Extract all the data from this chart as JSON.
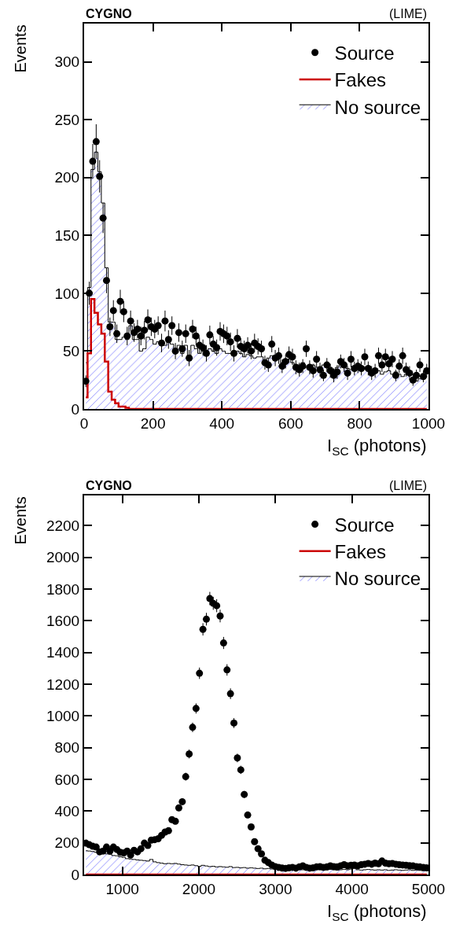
{
  "chart_data": [
    {
      "type": "step",
      "xlabel": "I$_{SC}$ (photons)",
      "ylabel": "Events",
      "annotations": [
        "CYGNO",
        "(LIME)"
      ],
      "xlim": [
        0,
        1000
      ],
      "ylim": [
        0,
        333
      ],
      "xticks": [
        0,
        200,
        400,
        600,
        800,
        1000
      ],
      "yticks": [
        0,
        50,
        100,
        150,
        200,
        250,
        300
      ],
      "legend": "top right",
      "x": [
        5,
        15,
        25,
        35,
        45,
        55,
        65,
        75,
        85,
        95,
        105,
        115,
        125,
        135,
        145,
        155,
        165,
        175,
        185,
        195,
        205,
        215,
        225,
        235,
        245,
        255,
        265,
        275,
        285,
        295,
        305,
        315,
        325,
        335,
        345,
        355,
        365,
        375,
        385,
        395,
        405,
        415,
        425,
        435,
        445,
        455,
        465,
        475,
        485,
        495,
        505,
        515,
        525,
        535,
        545,
        555,
        565,
        575,
        585,
        595,
        605,
        615,
        625,
        635,
        645,
        655,
        665,
        675,
        685,
        695,
        705,
        715,
        725,
        735,
        745,
        755,
        765,
        775,
        785,
        795,
        805,
        815,
        825,
        835,
        845,
        855,
        865,
        875,
        885,
        895,
        905,
        915,
        925,
        935,
        945,
        955,
        965,
        975,
        985,
        995
      ],
      "series": [
        {
          "name": "Source",
          "type": "scatter",
          "marker": "circle",
          "color": "#000000",
          "values": [
            24,
            100,
            214,
            231,
            201,
            165,
            111,
            71,
            85,
            65,
            93,
            84,
            63,
            76,
            66,
            69,
            63,
            68,
            77,
            71,
            69,
            72,
            57,
            76,
            60,
            72,
            50,
            66,
            52,
            65,
            44,
            69,
            63,
            55,
            53,
            48,
            64,
            56,
            53,
            67,
            65,
            63,
            58,
            48,
            61,
            54,
            52,
            55,
            50,
            57,
            54,
            52,
            40,
            38,
            56,
            44,
            46,
            37,
            41,
            47,
            45,
            36,
            34,
            37,
            52,
            36,
            33,
            43,
            34,
            29,
            38,
            33,
            29,
            32,
            41,
            38,
            31,
            43,
            35,
            37,
            35,
            45,
            35,
            31,
            33,
            46,
            38,
            45,
            39,
            43,
            29,
            37,
            46,
            34,
            31,
            25,
            29,
            38,
            28,
            33
          ],
          "errors": [
            5,
            10,
            15,
            15,
            14,
            13,
            11,
            8,
            9,
            8,
            10,
            9,
            8,
            9,
            8,
            8,
            8,
            8,
            9,
            8,
            8,
            8,
            8,
            9,
            8,
            8,
            7,
            8,
            7,
            8,
            7,
            8,
            8,
            7,
            7,
            7,
            8,
            7,
            7,
            8,
            8,
            8,
            8,
            7,
            8,
            7,
            7,
            7,
            7,
            8,
            7,
            7,
            6,
            6,
            7,
            7,
            7,
            6,
            6,
            7,
            7,
            6,
            6,
            6,
            7,
            6,
            6,
            7,
            6,
            5,
            6,
            6,
            6,
            6,
            6,
            6,
            6,
            7,
            6,
            6,
            6,
            7,
            6,
            6,
            6,
            7,
            6,
            7,
            6,
            7,
            5,
            6,
            7,
            6,
            6,
            5,
            5,
            6,
            5,
            6
          ]
        },
        {
          "name": "Fakes",
          "color": "#cc0000",
          "values": [
            10,
            48,
            95,
            83,
            73,
            65,
            41,
            15,
            8,
            5,
            2,
            2,
            1,
            0,
            0,
            0,
            0,
            0,
            0,
            0,
            0,
            0,
            0,
            0,
            0,
            0,
            0,
            0,
            0,
            0,
            0,
            0,
            0,
            0,
            0,
            0,
            0,
            0,
            0,
            0,
            0,
            0,
            0,
            0,
            0,
            0,
            0,
            0,
            0,
            0,
            0,
            0,
            0,
            0,
            0,
            0,
            0,
            0,
            0,
            0,
            0,
            0,
            0,
            0,
            0,
            0,
            0,
            0,
            0,
            0,
            0,
            0,
            0,
            0,
            0,
            0,
            0,
            0,
            0,
            0,
            0,
            0,
            0,
            0,
            0,
            0,
            0,
            0,
            0,
            0,
            0,
            0,
            0,
            0,
            0,
            0,
            0,
            0,
            0,
            0
          ]
        },
        {
          "name": "No source",
          "type": "area",
          "color": "#0000ff",
          "values": [
            40,
            105,
            207,
            222,
            205,
            178,
            122,
            75,
            75,
            60,
            60,
            62,
            60,
            72,
            60,
            60,
            50,
            52,
            62,
            60,
            56,
            58,
            56,
            55,
            58,
            56,
            48,
            55,
            48,
            55,
            42,
            55,
            52,
            48,
            50,
            48,
            52,
            50,
            48,
            52,
            50,
            48,
            48,
            46,
            50,
            48,
            45,
            47,
            46,
            44,
            45,
            45,
            42,
            44,
            46,
            44,
            43,
            40,
            42,
            43,
            40,
            36,
            38,
            40,
            36,
            38,
            38,
            36,
            36,
            38,
            36,
            36,
            34,
            36,
            38,
            36,
            35,
            34,
            36,
            34,
            33,
            36,
            34,
            32,
            34,
            33,
            30,
            32,
            33,
            30,
            32,
            30,
            28,
            30,
            32,
            30,
            24,
            26,
            30,
            32
          ]
        }
      ]
    },
    {
      "type": "step",
      "xlabel": "I$_{SC}$ (photons)",
      "ylabel": "Events",
      "annotations": [
        "CYGNO",
        "(LIME)"
      ],
      "xlim": [
        500,
        5000
      ],
      "ylim": [
        0,
        2390
      ],
      "xticks": [
        1000,
        2000,
        3000,
        4000,
        5000
      ],
      "yticks": [
        0,
        200,
        400,
        600,
        800,
        1000,
        1200,
        1400,
        1600,
        1800,
        2000,
        2200
      ],
      "legend": "top right",
      "x": [
        522.5,
        567.5,
        612.5,
        657.5,
        702.5,
        747.5,
        792.5,
        837.5,
        882.5,
        927.5,
        972.5,
        1017.5,
        1062.5,
        1107.5,
        1152.5,
        1197.5,
        1242.5,
        1287.5,
        1332.5,
        1377.5,
        1422.5,
        1467.5,
        1512.5,
        1557.5,
        1602.5,
        1647.5,
        1692.5,
        1737.5,
        1782.5,
        1827.5,
        1872.5,
        1917.5,
        1962.5,
        2007.5,
        2052.5,
        2097.5,
        2142.5,
        2187.5,
        2232.5,
        2277.5,
        2322.5,
        2367.5,
        2412.5,
        2457.5,
        2502.5,
        2547.5,
        2592.5,
        2637.5,
        2682.5,
        2727.5,
        2772.5,
        2817.5,
        2862.5,
        2907.5,
        2952.5,
        2997.5,
        3042.5,
        3087.5,
        3132.5,
        3177.5,
        3222.5,
        3267.5,
        3312.5,
        3357.5,
        3402.5,
        3447.5,
        3492.5,
        3537.5,
        3582.5,
        3627.5,
        3672.5,
        3717.5,
        3762.5,
        3807.5,
        3852.5,
        3897.5,
        3942.5,
        3987.5,
        4032.5,
        4077.5,
        4122.5,
        4167.5,
        4212.5,
        4257.5,
        4302.5,
        4347.5,
        4392.5,
        4437.5,
        4482.5,
        4527.5,
        4572.5,
        4617.5,
        4662.5,
        4707.5,
        4752.5,
        4797.5,
        4842.5,
        4887.5,
        4932.5,
        4977.5
      ],
      "series": [
        {
          "name": "Source",
          "type": "scatter",
          "marker": "circle",
          "color": "#000000",
          "values": [
            198,
            188,
            178,
            173,
            143,
            148,
            173,
            148,
            173,
            158,
            140,
            136,
            148,
            123,
            153,
            143,
            163,
            198,
            183,
            217,
            220,
            225,
            247,
            268,
            276,
            346,
            336,
            420,
            459,
            617,
            760,
            928,
            1047,
            1269,
            1546,
            1610,
            1740,
            1710,
            1695,
            1630,
            1460,
            1290,
            1140,
            955,
            735,
            660,
            505,
            375,
            300,
            207,
            163,
            130,
            90,
            75,
            60,
            50,
            45,
            41,
            39,
            42,
            45,
            40,
            48,
            55,
            45,
            40,
            42,
            48,
            50,
            45,
            48,
            55,
            50,
            48,
            55,
            62,
            55,
            58,
            60,
            55,
            62,
            65,
            70,
            65,
            72,
            68,
            85,
            72,
            68,
            70,
            65,
            62,
            60,
            58,
            56,
            54,
            50,
            48,
            45,
            42
          ],
          "errors": [
            14,
            14,
            13,
            13,
            12,
            12,
            13,
            12,
            13,
            13,
            12,
            12,
            12,
            11,
            12,
            12,
            13,
            14,
            14,
            15,
            15,
            15,
            16,
            16,
            16,
            19,
            18,
            20,
            21,
            25,
            28,
            30,
            32,
            36,
            39,
            40,
            42,
            41,
            41,
            40,
            38,
            36,
            34,
            31,
            27,
            26,
            22,
            19,
            17,
            14,
            13,
            11,
            9,
            9,
            8,
            7,
            7,
            6,
            6,
            6,
            7,
            6,
            7,
            7,
            7,
            6,
            6,
            7,
            7,
            7,
            7,
            7,
            7,
            7,
            7,
            8,
            7,
            8,
            8,
            7,
            8,
            8,
            8,
            8,
            8,
            8,
            9,
            8,
            8,
            8,
            8,
            8,
            8,
            8,
            7,
            7,
            7,
            7,
            7,
            6
          ]
        },
        {
          "name": "Fakes",
          "color": "#cc0000",
          "values": [
            0,
            0,
            0,
            0,
            0,
            0,
            0,
            0,
            0,
            0,
            0,
            0,
            0,
            0,
            0,
            0,
            0,
            0,
            0,
            0,
            0,
            0,
            0,
            0,
            0,
            0,
            0,
            0,
            0,
            0,
            0,
            0,
            0,
            0,
            0,
            0,
            0,
            0,
            0,
            0,
            0,
            0,
            0,
            0,
            0,
            0,
            0,
            0,
            0,
            0,
            0,
            0,
            0,
            0,
            0,
            0,
            0,
            0,
            0,
            0,
            0,
            0,
            0,
            0,
            0,
            0,
            0,
            0,
            0,
            0,
            0,
            0,
            0,
            0,
            0,
            0,
            0,
            0,
            0,
            0,
            0,
            0,
            0,
            0,
            0,
            0,
            0,
            0,
            0,
            0,
            0,
            0,
            0,
            0,
            0,
            0,
            0,
            0,
            0,
            0
          ]
        },
        {
          "name": "No source",
          "type": "area",
          "color": "#0000ff",
          "values": [
            150,
            148,
            145,
            140,
            138,
            135,
            130,
            128,
            120,
            118,
            112,
            108,
            100,
            98,
            95,
            92,
            90,
            88,
            85,
            95,
            80,
            75,
            72,
            68,
            70,
            68,
            70,
            66,
            62,
            60,
            58,
            60,
            56,
            52,
            58,
            54,
            50,
            52,
            48,
            50,
            48,
            46,
            50,
            44,
            45,
            42,
            44,
            40,
            42,
            40,
            38,
            40,
            36,
            38,
            35,
            36,
            34,
            36,
            32,
            34,
            30,
            32,
            33,
            30,
            32,
            34,
            30,
            32,
            30,
            28,
            30,
            32,
            30,
            28,
            30,
            32,
            30,
            34,
            38,
            30,
            28,
            30,
            32,
            30,
            28,
            30,
            28,
            30,
            26,
            28,
            30,
            28,
            26,
            28,
            30,
            26,
            28,
            26,
            24,
            28
          ]
        }
      ]
    }
  ]
}
